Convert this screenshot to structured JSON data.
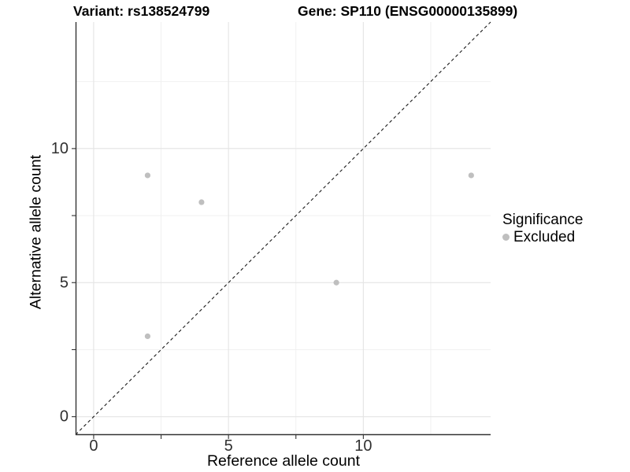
{
  "titles": {
    "variant": "Variant: rs138524799",
    "gene": "Gene: SP110 (ENSG00000135899)"
  },
  "legend": {
    "title": "Significance",
    "items": [
      {
        "label": "Excluded",
        "color": "#bfbfbf"
      }
    ]
  },
  "chart_data": {
    "type": "scatter",
    "title": "Variant: rs138524799 — Gene: SP110 (ENSG00000135899)",
    "xlabel": "Reference allele count",
    "ylabel": "Alternative allele count",
    "xlim": [
      -0.67,
      14.72
    ],
    "ylim": [
      -0.67,
      14.72
    ],
    "x_ticks": {
      "values": [
        0,
        2.5,
        5,
        7.5,
        10
      ],
      "labels": [
        "0",
        "",
        "5",
        "",
        "10"
      ]
    },
    "y_ticks": {
      "values": [
        0,
        2.5,
        5,
        7.5,
        10
      ],
      "labels": [
        "0",
        "",
        "5",
        "",
        "10"
      ]
    },
    "major_gridlines": [
      0,
      5,
      10
    ],
    "minor_gridlines": [
      2.5,
      7.5,
      12.5
    ],
    "grid": true,
    "legend_position": "right",
    "series": [
      {
        "name": "Excluded",
        "color": "#bfbfbf",
        "points": [
          [
            2,
            9
          ],
          [
            4,
            8
          ],
          [
            2,
            3
          ],
          [
            9,
            5
          ],
          [
            14,
            9
          ]
        ]
      }
    ],
    "reference_line": {
      "type": "identity y=x",
      "style": "dashed",
      "color": "#1a1a1a"
    }
  },
  "style": {
    "background": "#ffffff",
    "major_grid_color": "#e4e4e4",
    "minor_grid_color": "#efefef",
    "axis_line_color": "#333333",
    "tick_label_color": "#303030",
    "point_color": "#bfbfbf"
  }
}
